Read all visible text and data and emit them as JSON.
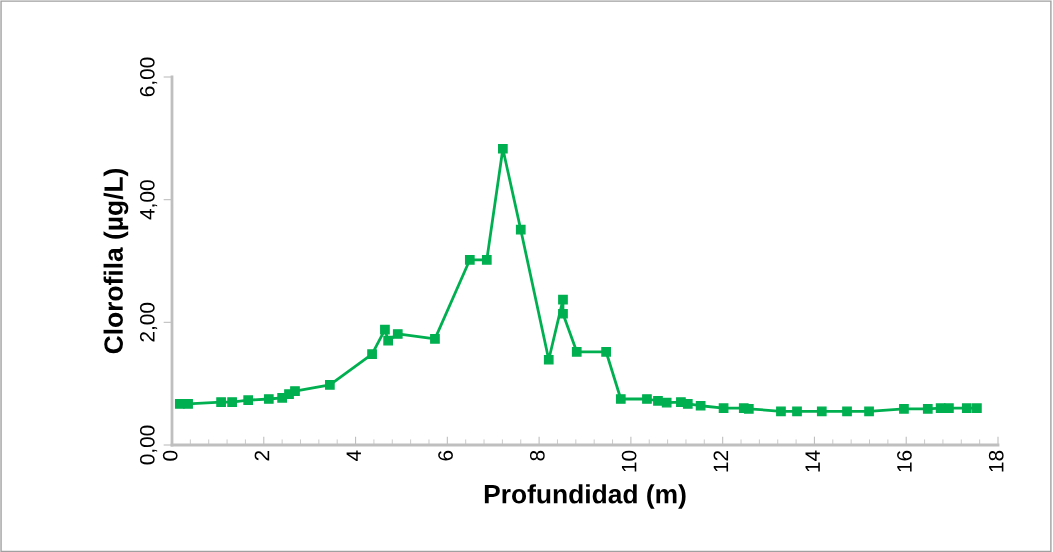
{
  "chart_data": {
    "type": "line",
    "xlabel": "Profundidad (m)",
    "ylabel": "Clorofila (µg/L)",
    "marker": "square",
    "line_style": "solid",
    "xlim": [
      0,
      18
    ],
    "ylim": [
      0,
      6
    ],
    "xticks": [
      0,
      2,
      4,
      6,
      8,
      10,
      12,
      14,
      16,
      18
    ],
    "yticks": [
      {
        "value": 0,
        "label": "0,00"
      },
      {
        "value": 2,
        "label": "2,00"
      },
      {
        "value": 4,
        "label": "4,00"
      },
      {
        "value": 6,
        "label": "6,00"
      }
    ],
    "series": [
      {
        "color": "#00b050",
        "x": [
          0.17,
          0.35,
          1.07,
          1.31,
          1.66,
          2.11,
          2.4,
          2.55,
          2.68,
          3.44,
          4.36,
          4.64,
          4.71,
          4.92,
          5.73,
          6.49,
          6.86,
          7.21,
          7.6,
          8.21,
          8.52,
          8.52,
          8.82,
          9.46,
          9.78,
          10.35,
          10.59,
          10.78,
          11.09,
          11.24,
          11.52,
          12.02,
          12.46,
          12.57,
          13.27,
          13.62,
          14.16,
          14.71,
          15.19,
          15.95,
          16.47,
          16.75,
          16.93,
          17.32,
          17.54
        ],
        "values": [
          0.67,
          0.67,
          0.7,
          0.7,
          0.73,
          0.75,
          0.77,
          0.83,
          0.88,
          0.98,
          1.48,
          1.88,
          1.7,
          1.81,
          1.73,
          3.02,
          3.02,
          4.83,
          3.51,
          1.39,
          2.37,
          2.14,
          1.52,
          1.52,
          0.75,
          0.75,
          0.72,
          0.69,
          0.7,
          0.67,
          0.64,
          0.6,
          0.6,
          0.59,
          0.55,
          0.55,
          0.55,
          0.55,
          0.55,
          0.59,
          0.59,
          0.6,
          0.6,
          0.6,
          0.6
        ]
      }
    ]
  }
}
